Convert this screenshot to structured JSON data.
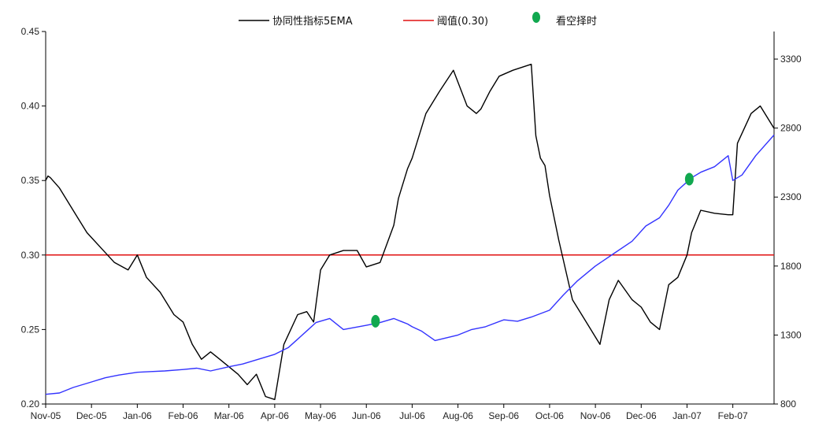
{
  "chart_data": {
    "type": "line",
    "title": "",
    "legend": {
      "placement": "top",
      "entries": [
        {
          "label": "协同性指标5EMA",
          "color": "#000000",
          "kind": "line"
        },
        {
          "label": "阈值(0.30)",
          "color": "#e01010",
          "kind": "line"
        },
        {
          "label": "看空择时",
          "color": "#11a84f",
          "kind": "dot"
        }
      ]
    },
    "x_axis": {
      "tick_labels": [
        "Nov-05",
        "Dec-05",
        "Jan-06",
        "Feb-06",
        "Mar-06",
        "Apr-06",
        "May-06",
        "Jun-06",
        "Jul-06",
        "Aug-06",
        "Sep-06",
        "Oct-06",
        "Nov-06",
        "Dec-06",
        "Jan-07",
        "Feb-07"
      ],
      "range": [
        0,
        15.9
      ]
    },
    "y_left": {
      "range": [
        0.2,
        0.45
      ],
      "ticks": [
        0.2,
        0.25,
        0.3,
        0.35,
        0.4,
        0.45
      ],
      "tick_labels": [
        "0.20",
        "0.25",
        "0.30",
        "0.35",
        "0.40",
        "0.45"
      ]
    },
    "y_right": {
      "range": [
        800,
        3500
      ],
      "ticks": [
        800,
        1300,
        1800,
        2300,
        2800,
        3300
      ],
      "tick_labels": [
        "800",
        "1300",
        "1800",
        "2300",
        "2800",
        "3300"
      ]
    },
    "grid": false,
    "series": [
      {
        "name": "协同性指标5EMA",
        "axis": "left",
        "color": "#000000",
        "x": [
          0,
          0.05,
          0.1,
          0.3,
          0.5,
          0.7,
          0.9,
          1.2,
          1.5,
          1.8,
          2.0,
          2.2,
          2.5,
          2.8,
          3.0,
          3.2,
          3.4,
          3.6,
          3.8,
          4.0,
          4.2,
          4.4,
          4.6,
          4.8,
          5.0,
          5.2,
          5.5,
          5.7,
          5.85,
          6.0,
          6.2,
          6.5,
          6.8,
          7.0,
          7.3,
          7.6,
          7.7,
          7.9,
          8.0,
          8.3,
          8.6,
          8.9,
          9.2,
          9.4,
          9.5,
          9.7,
          9.9,
          10.2,
          10.6,
          10.7,
          10.8,
          10.9,
          11.0,
          11.2,
          11.5,
          11.7,
          11.9,
          12.0,
          12.1,
          12.3,
          12.5,
          12.8,
          13.0,
          13.2,
          13.4,
          13.6,
          13.8,
          14.0,
          14.1,
          14.3,
          14.6,
          14.9,
          15.0,
          15.1,
          15.4,
          15.6,
          15.9
        ],
        "values": [
          0.35,
          0.353,
          0.352,
          0.345,
          0.335,
          0.325,
          0.315,
          0.305,
          0.295,
          0.29,
          0.3,
          0.285,
          0.275,
          0.26,
          0.255,
          0.24,
          0.23,
          0.235,
          0.23,
          0.225,
          0.22,
          0.213,
          0.22,
          0.205,
          0.203,
          0.24,
          0.26,
          0.262,
          0.255,
          0.29,
          0.3,
          0.303,
          0.303,
          0.292,
          0.295,
          0.32,
          0.338,
          0.358,
          0.365,
          0.395,
          0.41,
          0.424,
          0.4,
          0.395,
          0.398,
          0.41,
          0.42,
          0.424,
          0.428,
          0.38,
          0.365,
          0.36,
          0.34,
          0.31,
          0.27,
          0.26,
          0.25,
          0.245,
          0.24,
          0.27,
          0.283,
          0.27,
          0.265,
          0.255,
          0.25,
          0.28,
          0.285,
          0.3,
          0.315,
          0.33,
          0.328,
          0.327,
          0.327,
          0.375,
          0.395,
          0.4,
          0.385
        ]
      },
      {
        "name": "",
        "axis": "right",
        "color": "#3333ff",
        "x": [
          0,
          0.3,
          0.6,
          1.0,
          1.3,
          1.6,
          2.0,
          2.3,
          2.6,
          3.0,
          3.3,
          3.6,
          4.0,
          4.3,
          4.6,
          5.0,
          5.3,
          5.5,
          5.7,
          5.9,
          6.2,
          6.5,
          7.0,
          7.3,
          7.6,
          7.9,
          8.0,
          8.2,
          8.5,
          9.0,
          9.3,
          9.6,
          10.0,
          10.3,
          10.6,
          11.0,
          11.3,
          11.6,
          12.0,
          12.4,
          12.8,
          13.1,
          13.4,
          13.6,
          13.8,
          14.1,
          14.3,
          14.6,
          14.9,
          15.0,
          15.2,
          15.5,
          15.9
        ],
        "values": [
          870,
          880,
          920,
          960,
          990,
          1010,
          1030,
          1035,
          1040,
          1050,
          1060,
          1040,
          1070,
          1090,
          1120,
          1160,
          1210,
          1270,
          1330,
          1390,
          1420,
          1340,
          1370,
          1390,
          1420,
          1380,
          1360,
          1330,
          1260,
          1300,
          1340,
          1360,
          1410,
          1400,
          1430,
          1480,
          1590,
          1690,
          1800,
          1890,
          1980,
          2090,
          2150,
          2240,
          2350,
          2440,
          2480,
          2520,
          2600,
          2420,
          2460,
          2600,
          2750
        ]
      }
    ],
    "threshold": {
      "name": "阈值(0.30)",
      "axis": "left",
      "value": 0.3,
      "color": "#e01010"
    },
    "signal_points": {
      "name": "看空择时",
      "color": "#11a84f",
      "points": [
        {
          "x": 7.2,
          "y_right": 1400
        },
        {
          "x": 14.05,
          "y_right": 2430
        }
      ]
    }
  }
}
